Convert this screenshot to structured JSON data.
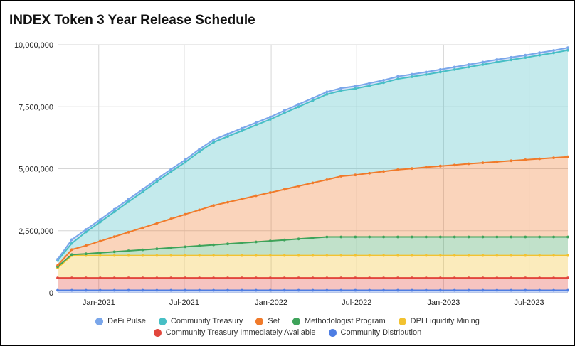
{
  "chart_data": {
    "type": "area",
    "stacked": true,
    "title": "INDEX Token 3 Year Release Schedule",
    "xlabel": "",
    "ylabel": "",
    "x": [
      "2020-10-06",
      "2020-11-05",
      "2020-12-05",
      "2021-01-04",
      "2021-02-03",
      "2021-03-05",
      "2021-04-04",
      "2021-05-04",
      "2021-06-03",
      "2021-07-03",
      "2021-08-02",
      "2021-09-01",
      "2021-10-01",
      "2021-10-31",
      "2021-11-30",
      "2021-12-30",
      "2022-01-29",
      "2022-02-28",
      "2022-03-30",
      "2022-04-29",
      "2022-05-29",
      "2022-06-28",
      "2022-07-28",
      "2022-08-27",
      "2022-09-26",
      "2022-10-26",
      "2022-11-25",
      "2022-12-25",
      "2023-01-24",
      "2023-02-23",
      "2023-03-25",
      "2023-04-24",
      "2023-05-24",
      "2023-06-23",
      "2023-07-23",
      "2023-08-22",
      "2023-09-21"
    ],
    "x_tick_labels": [
      "Jan-2021",
      "Jul-2021",
      "Jan-2022",
      "Jul-2022",
      "Jan-2023",
      "Jul-2023"
    ],
    "x_ticks": [
      "2021-01-01",
      "2021-07-01",
      "2022-01-01",
      "2022-07-01",
      "2023-01-01",
      "2023-07-01"
    ],
    "ylim": [
      0,
      10000000
    ],
    "y_ticks": [
      0,
      2500000,
      5000000,
      7500000,
      10000000
    ],
    "y_tick_labels": [
      "0",
      "2,500,000",
      "5,000,000",
      "7,500,000",
      "10,000,000"
    ],
    "grid": true,
    "legend_position": "bottom",
    "series": [
      {
        "name": "Community Distribution",
        "color": "#4d7de3",
        "values": [
          100000,
          100000,
          100000,
          100000,
          100000,
          100000,
          100000,
          100000,
          100000,
          100000,
          100000,
          100000,
          100000,
          100000,
          100000,
          100000,
          100000,
          100000,
          100000,
          100000,
          100000,
          100000,
          100000,
          100000,
          100000,
          100000,
          100000,
          100000,
          100000,
          100000,
          100000,
          100000,
          100000,
          100000,
          100000,
          100000,
          100000
        ]
      },
      {
        "name": "Community Treasury Immediately Available",
        "color": "#e2463c",
        "values": [
          500000,
          500000,
          500000,
          500000,
          500000,
          500000,
          500000,
          500000,
          500000,
          500000,
          500000,
          500000,
          500000,
          500000,
          500000,
          500000,
          500000,
          500000,
          500000,
          500000,
          500000,
          500000,
          500000,
          500000,
          500000,
          500000,
          500000,
          500000,
          500000,
          500000,
          500000,
          500000,
          500000,
          500000,
          500000,
          500000,
          500000
        ]
      },
      {
        "name": "DPI Liquidity Mining",
        "color": "#f2c230",
        "values": [
          400000,
          900000,
          900000,
          900000,
          900000,
          900000,
          900000,
          900000,
          900000,
          900000,
          900000,
          900000,
          900000,
          900000,
          900000,
          900000,
          900000,
          900000,
          900000,
          900000,
          900000,
          900000,
          900000,
          900000,
          900000,
          900000,
          900000,
          900000,
          900000,
          900000,
          900000,
          900000,
          900000,
          900000,
          900000,
          900000,
          900000
        ]
      },
      {
        "name": "Methodologist Program",
        "color": "#3ea35a",
        "values": [
          50000,
          40000,
          70000,
          110000,
          150000,
          190000,
          230000,
          270000,
          310000,
          350000,
          390000,
          430000,
          470000,
          510000,
          550000,
          590000,
          630000,
          670000,
          710000,
          750000,
          750000,
          750000,
          750000,
          750000,
          750000,
          750000,
          750000,
          750000,
          750000,
          750000,
          750000,
          750000,
          750000,
          750000,
          750000,
          750000,
          750000
        ]
      },
      {
        "name": "Set",
        "color": "#f07a2a",
        "values": [
          50000,
          200000,
          330000,
          470000,
          610000,
          750000,
          890000,
          1030000,
          1170000,
          1310000,
          1450000,
          1590000,
          1680000,
          1770000,
          1860000,
          1950000,
          2040000,
          2130000,
          2220000,
          2310000,
          2450000,
          2500000,
          2570000,
          2640000,
          2710000,
          2760000,
          2810000,
          2860000,
          2900000,
          2950000,
          2990000,
          3030000,
          3070000,
          3110000,
          3150000,
          3190000,
          3230000
        ]
      },
      {
        "name": "Community Treasury",
        "color": "#47bfc5",
        "values": [
          200000,
          250000,
          550000,
          770000,
          1000000,
          1230000,
          1450000,
          1680000,
          1900000,
          2100000,
          2350000,
          2550000,
          2650000,
          2750000,
          2850000,
          2950000,
          3080000,
          3200000,
          3320000,
          3440000,
          3450000,
          3480000,
          3530000,
          3580000,
          3660000,
          3700000,
          3740000,
          3790000,
          3850000,
          3900000,
          3960000,
          4020000,
          4070000,
          4120000,
          4180000,
          4230000,
          4300000
        ]
      },
      {
        "name": "DeFi Pulse",
        "color": "#7aa6ea",
        "values": [
          50000,
          150000,
          100000,
          100000,
          100000,
          100000,
          100000,
          100000,
          100000,
          100000,
          100000,
          100000,
          100000,
          100000,
          100000,
          100000,
          100000,
          100000,
          100000,
          100000,
          100000,
          100000,
          100000,
          100000,
          100000,
          100000,
          100000,
          100000,
          100000,
          100000,
          100000,
          100000,
          100000,
          100000,
          100000,
          100000,
          100000
        ]
      }
    ],
    "legend": [
      [
        "DeFi Pulse",
        "Community Treasury",
        "Set",
        "Methodologist Program",
        "DPI Liquidity Mining"
      ],
      [
        "Community Treasury Immediately Available",
        "Community Distribution"
      ]
    ]
  }
}
